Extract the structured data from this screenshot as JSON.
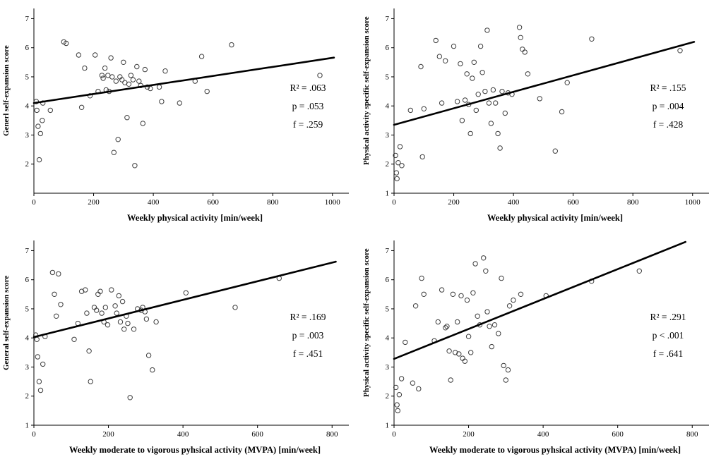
{
  "chart_data": [
    {
      "type": "scatter",
      "ylabel": "Generl self-expansion score",
      "xlabel": "Weekly physical activity [min/week]",
      "annotations": [
        "R² = .063",
        "p = .053",
        "f = .259"
      ],
      "stats": {
        "r_squared": ".063",
        "p": ".053",
        "f": ".259"
      },
      "x_ticks": [
        0,
        200,
        400,
        600,
        800,
        1000
      ],
      "y_ticks": [
        2,
        3,
        4,
        5,
        6,
        7
      ],
      "xlim": [
        0,
        1055
      ],
      "ylim": [
        1,
        7.35
      ],
      "grid": false,
      "regression_line": {
        "x": [
          0,
          1005
        ],
        "y": [
          4.1,
          5.66
        ]
      },
      "points": [
        [
          8,
          4.15
        ],
        [
          10,
          3.85
        ],
        [
          14,
          3.3
        ],
        [
          18,
          2.15
        ],
        [
          22,
          3.05
        ],
        [
          28,
          3.5
        ],
        [
          30,
          4.1
        ],
        [
          55,
          3.85
        ],
        [
          100,
          6.2
        ],
        [
          108,
          6.15
        ],
        [
          150,
          5.75
        ],
        [
          160,
          3.95
        ],
        [
          170,
          5.3
        ],
        [
          188,
          4.35
        ],
        [
          205,
          5.75
        ],
        [
          215,
          4.5
        ],
        [
          228,
          5.05
        ],
        [
          232,
          4.95
        ],
        [
          238,
          5.3
        ],
        [
          242,
          4.55
        ],
        [
          248,
          5.05
        ],
        [
          252,
          4.5
        ],
        [
          258,
          5.65
        ],
        [
          262,
          5.0
        ],
        [
          268,
          2.4
        ],
        [
          275,
          4.85
        ],
        [
          282,
          2.85
        ],
        [
          288,
          5.0
        ],
        [
          295,
          4.9
        ],
        [
          300,
          5.5
        ],
        [
          305,
          4.8
        ],
        [
          312,
          3.6
        ],
        [
          318,
          4.75
        ],
        [
          325,
          5.05
        ],
        [
          332,
          4.9
        ],
        [
          338,
          1.95
        ],
        [
          345,
          5.35
        ],
        [
          352,
          4.85
        ],
        [
          358,
          4.7
        ],
        [
          365,
          3.4
        ],
        [
          372,
          5.25
        ],
        [
          380,
          4.65
        ],
        [
          390,
          4.6
        ],
        [
          420,
          4.65
        ],
        [
          428,
          4.15
        ],
        [
          440,
          5.2
        ],
        [
          488,
          4.1
        ],
        [
          540,
          4.85
        ],
        [
          562,
          5.7
        ],
        [
          580,
          4.5
        ],
        [
          662,
          6.1
        ],
        [
          958,
          5.05
        ]
      ]
    },
    {
      "type": "scatter",
      "ylabel": "Physical activity specific self-expansion score",
      "xlabel": "Weekly physical activity [min/week]",
      "annotations": [
        "R² = .155",
        "p = .004",
        "f = .428"
      ],
      "stats": {
        "r_squared": ".155",
        "p": ".004",
        "f": ".428"
      },
      "x_ticks": [
        0,
        200,
        400,
        600,
        800,
        1000
      ],
      "y_ticks": [
        1,
        2,
        3,
        4,
        5,
        6,
        7
      ],
      "xlim": [
        0,
        1055
      ],
      "ylim": [
        1,
        7.35
      ],
      "grid": false,
      "regression_line": {
        "x": [
          0,
          1005
        ],
        "y": [
          3.35,
          6.2
        ]
      },
      "points": [
        [
          5,
          2.3
        ],
        [
          8,
          1.7
        ],
        [
          10,
          1.5
        ],
        [
          14,
          2.05
        ],
        [
          20,
          2.6
        ],
        [
          26,
          1.95
        ],
        [
          55,
          3.85
        ],
        [
          90,
          5.35
        ],
        [
          95,
          2.25
        ],
        [
          100,
          3.9
        ],
        [
          140,
          6.25
        ],
        [
          152,
          5.7
        ],
        [
          160,
          4.1
        ],
        [
          172,
          5.55
        ],
        [
          200,
          6.05
        ],
        [
          212,
          4.15
        ],
        [
          222,
          5.45
        ],
        [
          228,
          3.5
        ],
        [
          238,
          4.2
        ],
        [
          244,
          5.1
        ],
        [
          250,
          4.05
        ],
        [
          256,
          3.05
        ],
        [
          262,
          4.95
        ],
        [
          268,
          5.5
        ],
        [
          275,
          3.85
        ],
        [
          282,
          4.4
        ],
        [
          290,
          6.05
        ],
        [
          296,
          5.15
        ],
        [
          305,
          4.5
        ],
        [
          312,
          6.6
        ],
        [
          318,
          4.1
        ],
        [
          325,
          3.4
        ],
        [
          332,
          4.55
        ],
        [
          340,
          4.1
        ],
        [
          348,
          3.05
        ],
        [
          355,
          2.55
        ],
        [
          362,
          4.5
        ],
        [
          372,
          3.75
        ],
        [
          382,
          4.45
        ],
        [
          395,
          4.4
        ],
        [
          420,
          6.7
        ],
        [
          424,
          6.35
        ],
        [
          430,
          5.95
        ],
        [
          438,
          5.85
        ],
        [
          448,
          5.1
        ],
        [
          488,
          4.25
        ],
        [
          540,
          2.45
        ],
        [
          562,
          3.8
        ],
        [
          580,
          4.8
        ],
        [
          662,
          6.3
        ],
        [
          958,
          5.9
        ]
      ]
    },
    {
      "type": "scatter",
      "ylabel": "General self-expansion score",
      "xlabel": "Weekly moderate to vigorous pyhsical activity (MVPA) [min/week]",
      "annotations": [
        "R² = .169",
        "p = .003",
        "f = .451"
      ],
      "stats": {
        "r_squared": ".169",
        "p": ".003",
        "f": ".451"
      },
      "x_ticks": [
        0,
        200,
        400,
        600,
        800
      ],
      "y_ticks": [
        1,
        2,
        3,
        4,
        5,
        6,
        7
      ],
      "xlim": [
        0,
        845
      ],
      "ylim": [
        1,
        7.35
      ],
      "grid": false,
      "regression_line": {
        "x": [
          0,
          810
        ],
        "y": [
          4.03,
          6.62
        ]
      },
      "points": [
        [
          5,
          4.1
        ],
        [
          8,
          3.95
        ],
        [
          10,
          3.35
        ],
        [
          14,
          2.5
        ],
        [
          18,
          2.2
        ],
        [
          24,
          3.1
        ],
        [
          30,
          4.05
        ],
        [
          50,
          6.25
        ],
        [
          55,
          5.5
        ],
        [
          60,
          4.75
        ],
        [
          66,
          6.2
        ],
        [
          72,
          5.15
        ],
        [
          108,
          3.95
        ],
        [
          118,
          4.5
        ],
        [
          128,
          5.6
        ],
        [
          138,
          5.65
        ],
        [
          142,
          4.85
        ],
        [
          148,
          3.55
        ],
        [
          152,
          2.5
        ],
        [
          162,
          5.05
        ],
        [
          168,
          4.95
        ],
        [
          172,
          5.5
        ],
        [
          178,
          5.6
        ],
        [
          182,
          4.85
        ],
        [
          188,
          4.55
        ],
        [
          192,
          5.05
        ],
        [
          198,
          4.45
        ],
        [
          208,
          5.65
        ],
        [
          218,
          5.1
        ],
        [
          222,
          4.85
        ],
        [
          228,
          5.45
        ],
        [
          232,
          4.55
        ],
        [
          238,
          5.25
        ],
        [
          242,
          4.3
        ],
        [
          248,
          4.75
        ],
        [
          252,
          4.5
        ],
        [
          258,
          1.95
        ],
        [
          268,
          4.3
        ],
        [
          278,
          5.0
        ],
        [
          288,
          4.95
        ],
        [
          292,
          5.05
        ],
        [
          298,
          4.9
        ],
        [
          302,
          4.65
        ],
        [
          308,
          3.4
        ],
        [
          318,
          2.9
        ],
        [
          328,
          4.55
        ],
        [
          408,
          5.55
        ],
        [
          540,
          5.05
        ],
        [
          658,
          6.05
        ]
      ]
    },
    {
      "type": "scatter",
      "ylabel": "Physical activity specific self-expansion score",
      "xlabel": "Weekly moderate to vigorous pyhsical activity (MVPA) [min/week]",
      "annotations": [
        "R² = .291",
        "p < .001",
        "f = .641"
      ],
      "stats": {
        "r_squared": ".291",
        "p": "< .001",
        "f": ".641"
      },
      "x_ticks": [
        0,
        200,
        400,
        600,
        800
      ],
      "y_ticks": [
        1,
        2,
        3,
        4,
        5,
        6,
        7
      ],
      "xlim": [
        0,
        845
      ],
      "ylim": [
        1,
        7.35
      ],
      "grid": false,
      "regression_line": {
        "x": [
          0,
          782
        ],
        "y": [
          3.28,
          7.3
        ]
      },
      "points": [
        [
          5,
          2.3
        ],
        [
          8,
          1.7
        ],
        [
          10,
          1.5
        ],
        [
          14,
          2.05
        ],
        [
          20,
          2.6
        ],
        [
          30,
          3.85
        ],
        [
          50,
          2.45
        ],
        [
          58,
          5.1
        ],
        [
          66,
          2.25
        ],
        [
          74,
          6.05
        ],
        [
          80,
          5.5
        ],
        [
          108,
          3.9
        ],
        [
          118,
          4.55
        ],
        [
          128,
          5.65
        ],
        [
          138,
          4.35
        ],
        [
          142,
          4.4
        ],
        [
          148,
          3.55
        ],
        [
          152,
          2.55
        ],
        [
          158,
          5.5
        ],
        [
          164,
          3.5
        ],
        [
          170,
          4.55
        ],
        [
          174,
          3.45
        ],
        [
          180,
          5.45
        ],
        [
          184,
          3.3
        ],
        [
          190,
          3.2
        ],
        [
          196,
          5.3
        ],
        [
          200,
          4.05
        ],
        [
          206,
          3.5
        ],
        [
          212,
          5.55
        ],
        [
          218,
          6.55
        ],
        [
          224,
          4.75
        ],
        [
          230,
          4.45
        ],
        [
          240,
          6.75
        ],
        [
          246,
          6.3
        ],
        [
          250,
          4.9
        ],
        [
          256,
          4.4
        ],
        [
          262,
          3.7
        ],
        [
          270,
          4.45
        ],
        [
          280,
          4.15
        ],
        [
          288,
          6.05
        ],
        [
          294,
          3.05
        ],
        [
          300,
          2.55
        ],
        [
          306,
          2.9
        ],
        [
          310,
          5.1
        ],
        [
          320,
          5.3
        ],
        [
          340,
          5.5
        ],
        [
          408,
          5.45
        ],
        [
          530,
          5.95
        ],
        [
          658,
          6.3
        ]
      ]
    }
  ],
  "style": {
    "marker_color": "#3d3d3d",
    "line_color": "#000000",
    "axis_color": "#000000",
    "background": "#ffffff"
  }
}
